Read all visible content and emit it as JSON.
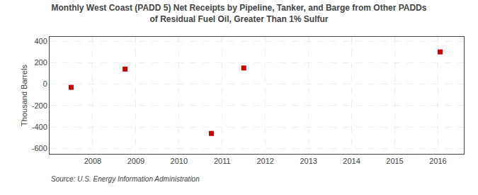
{
  "chart_data": {
    "type": "scatter",
    "title": "Monthly West Coast (PADD 5) Net Receipts by Pipeline, Tanker, and Barge from Other PADDs\nof Residual Fuel Oil, Greater Than 1% Sulfur",
    "ylabel": "Thousand Barrels",
    "annotation": "Source: U.S. Energy Information Administration",
    "x": [
      2007.5,
      2008.75,
      2010.75,
      2011.5,
      2016.05
    ],
    "values": [
      -30,
      140,
      -460,
      150,
      300
    ],
    "color": "#cc0000",
    "marker": "square",
    "xlim": [
      2007.0,
      2016.6
    ],
    "ylim": [
      -650,
      440
    ],
    "xticks": [
      2008,
      2009,
      2010,
      2011,
      2012,
      2013,
      2014,
      2015,
      2016
    ],
    "yticks": [
      -600,
      -400,
      -200,
      0,
      200,
      400
    ],
    "grid": true
  }
}
